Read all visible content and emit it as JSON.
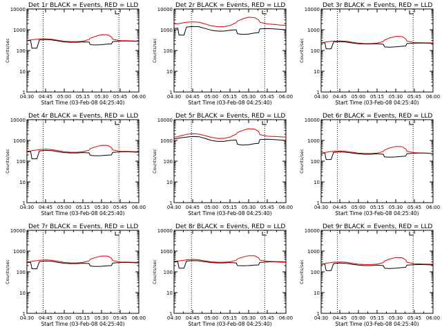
{
  "figure": {
    "colors": {
      "events": "#000000",
      "lld": "#e00000",
      "axes": "#000000",
      "background": "#ffffff"
    }
  },
  "chart_data": [
    {
      "type": "line",
      "panel": "det-1r",
      "title": "Det 1r BLACK = Events, RED = LLD",
      "xlabel": "Start Time (03-Feb-08 04:25:40)",
      "ylabel": "Counts/sec",
      "yscale": "log",
      "ylim": [
        1,
        10000
      ],
      "xlim": [
        "04:30",
        "06:00"
      ],
      "xticks": [
        "04:30",
        "04:45",
        "05:00",
        "05:15",
        "05:30",
        "05:45",
        "06:00"
      ],
      "yticks": [
        "1",
        "10",
        "100",
        "1000",
        "10000"
      ],
      "dotted_lines_x": [
        "04:43",
        "05:44"
      ],
      "x": [
        "04:30",
        "04:33",
        "04:34",
        "04:38",
        "04:40",
        "04:45",
        "04:50",
        "04:55",
        "05:00",
        "05:05",
        "05:10",
        "05:15",
        "05:20",
        "05:21",
        "05:25",
        "05:30",
        "05:35",
        "05:38",
        "05:39",
        "05:45",
        "05:50",
        "05:55",
        "06:00"
      ],
      "series": [
        {
          "name": "Events",
          "color": "#000000",
          "values": [
            300,
            300,
            130,
            130,
            320,
            330,
            320,
            290,
            260,
            250,
            250,
            260,
            255,
            190,
            185,
            190,
            205,
            205,
            270,
            285,
            290,
            280,
            275
          ]
        },
        {
          "name": "LLD",
          "color": "#e00000",
          "values": [
            310,
            320,
            330,
            350,
            360,
            370,
            350,
            310,
            280,
            270,
            270,
            280,
            340,
            390,
            480,
            580,
            570,
            450,
            350,
            300,
            300,
            290,
            285
          ]
        }
      ]
    },
    {
      "type": "line",
      "panel": "det-2r",
      "title": "Det 2r BLACK = Events, RED = LLD",
      "xlabel": "Start Time (03-Feb-08 04:25:40)",
      "ylabel": "Counts/sec",
      "yscale": "log",
      "ylim": [
        1,
        10000
      ],
      "xlim": [
        "04:30",
        "06:00"
      ],
      "xticks": [
        "04:30",
        "04:45",
        "05:00",
        "05:15",
        "05:30",
        "05:45",
        "06:00"
      ],
      "yticks": [
        "1",
        "10",
        "100",
        "1000",
        "10000"
      ],
      "dotted_lines_x": [
        "04:44",
        "05:43"
      ],
      "x": [
        "04:30",
        "04:33",
        "04:34",
        "04:38",
        "04:40",
        "04:45",
        "04:50",
        "04:55",
        "05:00",
        "05:05",
        "05:10",
        "05:15",
        "05:20",
        "05:21",
        "05:25",
        "05:30",
        "05:35",
        "05:38",
        "05:39",
        "05:45",
        "05:50",
        "05:55",
        "06:00"
      ],
      "series": [
        {
          "name": "Events",
          "color": "#000000",
          "values": [
            1150,
            1200,
            550,
            550,
            1350,
            1450,
            1400,
            1150,
            950,
            860,
            860,
            950,
            1000,
            640,
            600,
            620,
            700,
            720,
            1100,
            1150,
            1100,
            1050,
            1000
          ]
        },
        {
          "name": "LLD",
          "color": "#e00000",
          "values": [
            1900,
            1950,
            2000,
            2200,
            2300,
            2400,
            2300,
            1900,
            1550,
            1400,
            1400,
            1600,
            2200,
            2600,
            3300,
            4000,
            3800,
            3000,
            2300,
            1900,
            1800,
            1700,
            1650
          ]
        }
      ]
    },
    {
      "type": "line",
      "panel": "det-3r",
      "title": "Det 3r BLACK = Events, RED = LLD",
      "xlabel": "Start Time (03-Feb-08 04:25:40)",
      "ylabel": "Counts/sec",
      "yscale": "log",
      "ylim": [
        1,
        10000
      ],
      "xlim": [
        "04:30",
        "06:00"
      ],
      "xticks": [
        "04:30",
        "04:45",
        "05:00",
        "05:15",
        "05:30",
        "05:45",
        "06:00"
      ],
      "yticks": [
        "1",
        "10",
        "100",
        "1000",
        "10000"
      ],
      "dotted_lines_x": [
        "04:43",
        "05:44"
      ],
      "x": [
        "04:30",
        "04:33",
        "04:34",
        "04:38",
        "04:40",
        "04:45",
        "04:50",
        "04:55",
        "05:00",
        "05:05",
        "05:10",
        "05:15",
        "05:20",
        "05:21",
        "05:25",
        "05:30",
        "05:35",
        "05:38",
        "05:39",
        "05:45",
        "05:50",
        "05:55",
        "06:00"
      ],
      "series": [
        {
          "name": "Events",
          "color": "#000000",
          "values": [
            230,
            240,
            120,
            120,
            255,
            265,
            255,
            230,
            210,
            205,
            205,
            210,
            200,
            150,
            145,
            150,
            160,
            165,
            215,
            225,
            230,
            225,
            220
          ]
        },
        {
          "name": "LLD",
          "color": "#e00000",
          "values": [
            240,
            250,
            260,
            275,
            285,
            290,
            280,
            250,
            225,
            215,
            215,
            225,
            270,
            320,
            400,
            480,
            470,
            370,
            285,
            240,
            240,
            235,
            230
          ]
        }
      ]
    },
    {
      "type": "line",
      "panel": "det-4r",
      "title": "Det 4r BLACK = Events, RED = LLD",
      "xlabel": "Start Time (03-Feb-08 04:25:40)",
      "ylabel": "Counts/sec",
      "yscale": "log",
      "ylim": [
        1,
        10000
      ],
      "xlim": [
        "04:30",
        "06:00"
      ],
      "xticks": [
        "04:30",
        "04:45",
        "05:00",
        "05:15",
        "05:30",
        "05:45",
        "06:00"
      ],
      "yticks": [
        "1",
        "10",
        "100",
        "1000",
        "10000"
      ],
      "dotted_lines_x": [
        "04:43",
        "05:44"
      ],
      "x": [
        "04:30",
        "04:33",
        "04:34",
        "04:38",
        "04:40",
        "04:45",
        "04:50",
        "04:55",
        "05:00",
        "05:05",
        "05:10",
        "05:15",
        "05:20",
        "05:21",
        "05:25",
        "05:30",
        "05:35",
        "05:38",
        "05:39",
        "05:45",
        "05:50",
        "05:55",
        "06:00"
      ],
      "series": [
        {
          "name": "Events",
          "color": "#000000",
          "values": [
            280,
            290,
            130,
            130,
            310,
            330,
            320,
            285,
            260,
            250,
            250,
            260,
            250,
            190,
            180,
            185,
            195,
            200,
            265,
            280,
            285,
            275,
            270
          ]
        },
        {
          "name": "LLD",
          "color": "#e00000",
          "values": [
            300,
            310,
            320,
            345,
            360,
            380,
            360,
            320,
            285,
            270,
            270,
            285,
            340,
            400,
            490,
            580,
            570,
            450,
            350,
            300,
            295,
            290,
            285
          ]
        }
      ]
    },
    {
      "type": "line",
      "panel": "det-5r",
      "title": "Det 5r BLACK = Events, RED = LLD",
      "xlabel": "Start Time (03-Feb-08 04:25:40)",
      "ylabel": "Counts/sec",
      "yscale": "log",
      "ylim": [
        1,
        10000
      ],
      "xlim": [
        "04:30",
        "06:00"
      ],
      "xticks": [
        "04:30",
        "04:45",
        "05:00",
        "05:15",
        "05:30",
        "05:45",
        "06:00"
      ],
      "yticks": [
        "1",
        "10",
        "100",
        "1000",
        "10000"
      ],
      "dotted_lines_x": [
        "04:44",
        "05:43"
      ],
      "x": [
        "04:30",
        "04:33",
        "04:34",
        "04:38",
        "04:40",
        "04:45",
        "04:50",
        "04:55",
        "05:00",
        "05:05",
        "05:10",
        "05:15",
        "05:20",
        "05:21",
        "05:25",
        "05:30",
        "05:35",
        "05:38",
        "05:39",
        "05:45",
        "05:50",
        "05:55",
        "06:00"
      ],
      "series": [
        {
          "name": "Events",
          "color": "#000000",
          "values": [
            1200,
            1250,
            1300,
            1400,
            1450,
            1550,
            1500,
            1250,
            1000,
            900,
            900,
            1000,
            1050,
            650,
            600,
            620,
            700,
            720,
            1100,
            1150,
            1100,
            1050,
            1000
          ]
        },
        {
          "name": "LLD",
          "color": "#e00000",
          "values": [
            1450,
            1500,
            1600,
            1800,
            1950,
            2100,
            2000,
            1700,
            1400,
            1250,
            1250,
            1450,
            2000,
            2400,
            3000,
            3700,
            3500,
            2700,
            1900,
            1600,
            1550,
            1500,
            1450
          ]
        }
      ]
    },
    {
      "type": "line",
      "panel": "det-6r",
      "title": "Det 6r BLACK = Events, RED = LLD",
      "xlabel": "Start Time (03-Feb-08 04:25:40)",
      "ylabel": "Counts/sec",
      "yscale": "log",
      "ylim": [
        1,
        10000
      ],
      "xlim": [
        "04:30",
        "06:00"
      ],
      "xticks": [
        "04:30",
        "04:45",
        "05:00",
        "05:15",
        "05:30",
        "05:45",
        "06:00"
      ],
      "yticks": [
        "1",
        "10",
        "100",
        "1000",
        "10000"
      ],
      "dotted_lines_x": [
        "04:43",
        "05:44"
      ],
      "x": [
        "04:30",
        "04:33",
        "04:34",
        "04:38",
        "04:40",
        "04:45",
        "04:50",
        "04:55",
        "05:00",
        "05:05",
        "05:10",
        "05:15",
        "05:20",
        "05:21",
        "05:25",
        "05:30",
        "05:35",
        "05:38",
        "05:39",
        "05:45",
        "05:50",
        "05:55",
        "06:00"
      ],
      "series": [
        {
          "name": "Events",
          "color": "#000000",
          "values": [
            240,
            250,
            120,
            120,
            265,
            280,
            270,
            245,
            225,
            215,
            215,
            225,
            215,
            160,
            155,
            160,
            170,
            175,
            230,
            240,
            245,
            240,
            235
          ]
        },
        {
          "name": "LLD",
          "color": "#e00000",
          "values": [
            250,
            260,
            270,
            290,
            300,
            310,
            300,
            270,
            245,
            235,
            235,
            245,
            290,
            340,
            430,
            510,
            500,
            390,
            300,
            255,
            250,
            245,
            240
          ]
        }
      ]
    },
    {
      "type": "line",
      "panel": "det-7r",
      "title": "Det 7r BLACK = Events, RED = LLD",
      "xlabel": "Start Time (03-Feb-08 04:25:40)",
      "ylabel": "Counts/sec",
      "yscale": "log",
      "ylim": [
        1,
        10000
      ],
      "xlim": [
        "04:30",
        "06:00"
      ],
      "xticks": [
        "04:30",
        "04:45",
        "05:00",
        "05:15",
        "05:30",
        "05:45",
        "06:00"
      ],
      "yticks": [
        "1",
        "10",
        "100",
        "1000",
        "10000"
      ],
      "dotted_lines_x": [
        "04:43",
        "05:44"
      ],
      "x": [
        "04:30",
        "04:33",
        "04:34",
        "04:38",
        "04:40",
        "04:45",
        "04:50",
        "04:55",
        "05:00",
        "05:05",
        "05:10",
        "05:15",
        "05:20",
        "05:21",
        "05:25",
        "05:30",
        "05:35",
        "05:38",
        "05:39",
        "05:45",
        "05:50",
        "05:55",
        "06:00"
      ],
      "series": [
        {
          "name": "Events",
          "color": "#000000",
          "values": [
            280,
            290,
            140,
            140,
            310,
            330,
            320,
            285,
            260,
            250,
            250,
            260,
            250,
            190,
            180,
            185,
            195,
            200,
            265,
            280,
            285,
            275,
            270
          ]
        },
        {
          "name": "LLD",
          "color": "#e00000",
          "values": [
            300,
            310,
            320,
            345,
            360,
            380,
            360,
            320,
            285,
            270,
            270,
            285,
            340,
            400,
            490,
            580,
            570,
            450,
            350,
            300,
            295,
            290,
            285
          ]
        }
      ]
    },
    {
      "type": "line",
      "panel": "det-8r",
      "title": "Det 8r BLACK = Events, RED = LLD",
      "xlabel": "Start Time (03-Feb-08 04:25:40)",
      "ylabel": "Counts/sec",
      "yscale": "log",
      "ylim": [
        1,
        10000
      ],
      "xlim": [
        "04:30",
        "06:00"
      ],
      "xticks": [
        "04:30",
        "04:45",
        "05:00",
        "05:15",
        "05:30",
        "05:45",
        "06:00"
      ],
      "yticks": [
        "1",
        "10",
        "100",
        "1000",
        "10000"
      ],
      "dotted_lines_x": [
        "04:44",
        "05:43"
      ],
      "x": [
        "04:30",
        "04:33",
        "04:34",
        "04:38",
        "04:40",
        "04:45",
        "04:50",
        "04:55",
        "05:00",
        "05:05",
        "05:10",
        "05:15",
        "05:20",
        "05:21",
        "05:25",
        "05:30",
        "05:35",
        "05:38",
        "05:39",
        "05:45",
        "05:50",
        "05:55",
        "06:00"
      ],
      "series": [
        {
          "name": "Events",
          "color": "#000000",
          "values": [
            300,
            310,
            150,
            150,
            330,
            350,
            340,
            305,
            280,
            270,
            270,
            280,
            270,
            200,
            195,
            200,
            210,
            215,
            285,
            300,
            305,
            295,
            290
          ]
        },
        {
          "name": "LLD",
          "color": "#e00000",
          "values": [
            320,
            330,
            340,
            360,
            380,
            400,
            380,
            340,
            305,
            290,
            290,
            305,
            360,
            420,
            510,
            600,
            590,
            470,
            370,
            320,
            315,
            310,
            305
          ]
        }
      ]
    },
    {
      "type": "line",
      "panel": "det-9r",
      "title": "Det 9r BLACK = Events, RED = LLD",
      "xlabel": "Start Time (03-Feb-08 04:25:40)",
      "ylabel": "Counts/sec",
      "yscale": "log",
      "ylim": [
        1,
        10000
      ],
      "xlim": [
        "04:30",
        "06:00"
      ],
      "xticks": [
        "04:30",
        "04:45",
        "05:00",
        "05:15",
        "05:30",
        "05:45",
        "06:00"
      ],
      "yticks": [
        "1",
        "10",
        "100",
        "1000",
        "10000"
      ],
      "dotted_lines_x": [
        "04:43",
        "05:44"
      ],
      "x": [
        "04:30",
        "04:33",
        "04:34",
        "04:38",
        "04:40",
        "04:45",
        "04:50",
        "04:55",
        "05:00",
        "05:05",
        "05:10",
        "05:15",
        "05:20",
        "05:21",
        "05:25",
        "05:30",
        "05:35",
        "05:38",
        "05:39",
        "05:45",
        "05:50",
        "05:55",
        "06:00"
      ],
      "series": [
        {
          "name": "Events",
          "color": "#000000",
          "values": [
            230,
            240,
            115,
            115,
            250,
            265,
            255,
            230,
            210,
            200,
            200,
            210,
            200,
            150,
            145,
            150,
            160,
            165,
            210,
            220,
            225,
            220,
            215
          ]
        },
        {
          "name": "LLD",
          "color": "#e00000",
          "values": [
            240,
            250,
            260,
            280,
            290,
            300,
            290,
            260,
            235,
            225,
            225,
            235,
            280,
            330,
            410,
            490,
            480,
            380,
            290,
            245,
            240,
            235,
            230
          ]
        }
      ]
    }
  ]
}
